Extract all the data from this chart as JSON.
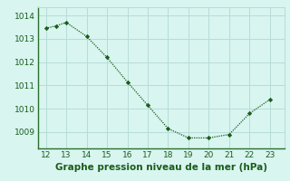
{
  "x": [
    12,
    12.5,
    13,
    14,
    15,
    16,
    17,
    18,
    19,
    20,
    21,
    22,
    23
  ],
  "y": [
    1013.45,
    1013.55,
    1013.7,
    1013.1,
    1012.2,
    1011.15,
    1010.15,
    1009.15,
    1008.75,
    1008.75,
    1008.9,
    1009.8,
    1010.4
  ],
  "line_color": "#1a5c1a",
  "marker_color": "#1a5c1a",
  "bg_color": "#d8f5f0",
  "grid_color": "#b8dcd8",
  "border_color": "#2d6e2d",
  "xlabel": "Graphe pression niveau de la mer (hPa)",
  "xlabel_color": "#1a5c1a",
  "xlabel_fontsize": 7.5,
  "xticks": [
    12,
    13,
    14,
    15,
    16,
    17,
    18,
    19,
    20,
    21,
    22,
    23
  ],
  "yticks": [
    1009,
    1010,
    1011,
    1012,
    1013,
    1014
  ],
  "ylim": [
    1008.3,
    1014.35
  ],
  "xlim": [
    11.6,
    23.7
  ],
  "tick_fontsize": 6.5,
  "tick_color": "#1a5c1a"
}
